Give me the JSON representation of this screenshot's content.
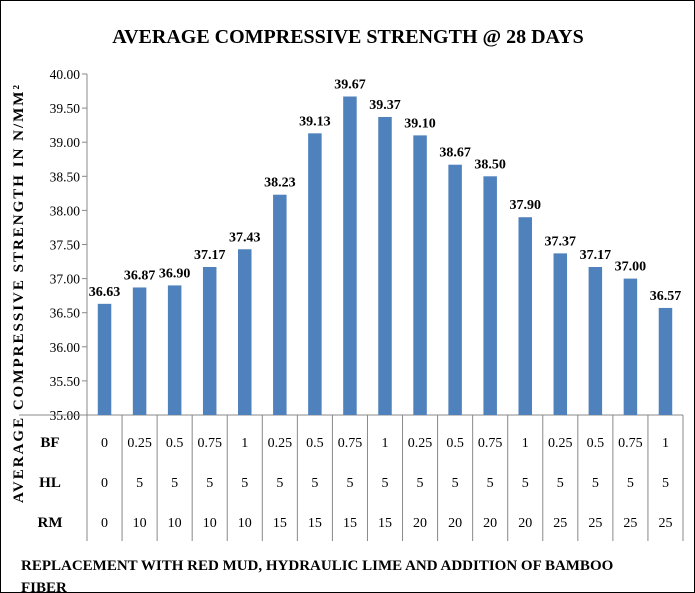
{
  "chart_data": {
    "type": "bar",
    "title": "AVERAGE  COMPRESSIVE STRENGTH @ 28 DAYS",
    "ylabel": "AVERAGE COMPRESSIVE STRENGTH IN N/MM²",
    "xlabel": "REPLACEMENT WITH RED MUD, HYDRAULIC LIME AND ADDITION OF BAMBOO FIBER",
    "ylim": [
      35.0,
      40.0
    ],
    "yticks": [
      "35.00",
      "35.50",
      "36.00",
      "36.50",
      "37.00",
      "37.50",
      "38.00",
      "38.50",
      "39.00",
      "39.50",
      "40.00"
    ],
    "grid": false,
    "bar_color": "#4f81bd",
    "values": [
      36.63,
      36.87,
      36.9,
      37.17,
      37.43,
      38.23,
      39.13,
      39.67,
      39.37,
      39.1,
      38.67,
      38.5,
      37.9,
      37.37,
      37.17,
      37.0,
      36.57
    ],
    "data_labels": [
      "36.63",
      "36.87",
      "36.90",
      "37.17",
      "37.43",
      "38.23",
      "39.13",
      "39.67",
      "39.37",
      "39.10",
      "38.67",
      "38.50",
      "37.90",
      "37.37",
      "37.17",
      "37.00",
      "36.57"
    ],
    "category_rows": [
      {
        "name": "BF",
        "values": [
          "0",
          "0.25",
          "0.5",
          "0.75",
          "1",
          "0.25",
          "0.5",
          "0.75",
          "1",
          "0.25",
          "0.5",
          "0.75",
          "1",
          "0.25",
          "0.5",
          "0.75",
          "1"
        ]
      },
      {
        "name": "HL",
        "values": [
          "0",
          "5",
          "5",
          "5",
          "5",
          "5",
          "5",
          "5",
          "5",
          "5",
          "5",
          "5",
          "5",
          "5",
          "5",
          "5",
          "5"
        ]
      },
      {
        "name": "RM",
        "values": [
          "0",
          "10",
          "10",
          "10",
          "10",
          "15",
          "15",
          "15",
          "15",
          "20",
          "20",
          "20",
          "20",
          "25",
          "25",
          "25",
          "25"
        ]
      }
    ]
  }
}
